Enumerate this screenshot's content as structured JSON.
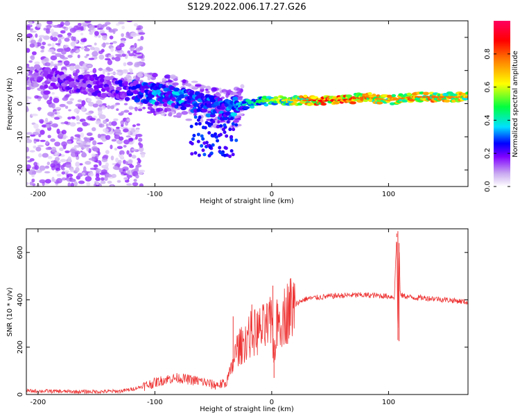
{
  "title": "S129.2022.006.17.27.G26",
  "chart_data": [
    {
      "type": "heatmap",
      "xlabel": "Height of straight line (km)",
      "ylabel": "Frequency (Hz)",
      "xlim": [
        -210,
        168
      ],
      "ylim": [
        -25,
        25
      ],
      "xticks": [
        -200,
        -100,
        0,
        100
      ],
      "yticks": [
        -20,
        -10,
        0,
        10,
        20
      ],
      "colorbar": {
        "label": "Normalized spectral amplitude",
        "range": [
          0.0,
          1.0
        ],
        "ticks": [
          0.0,
          0.2,
          0.4,
          0.6,
          0.8
        ],
        "colors": [
          "#ffffff",
          "#c8a8f0",
          "#8000ff",
          "#0000ff",
          "#00e0ff",
          "#00ff40",
          "#ffff00",
          "#ff8000",
          "#ff0000",
          "#ff0060"
        ]
      },
      "ridge": {
        "description_points_x": [
          -200,
          -180,
          -160,
          -140,
          -120,
          -100,
          -80,
          -60,
          -40,
          -20,
          0,
          20,
          40,
          60,
          80,
          100,
          120,
          140,
          168
        ],
        "peak_frequency": [
          8,
          7,
          6,
          5,
          4,
          3,
          2,
          0,
          -2,
          0,
          1,
          1,
          1,
          1,
          2,
          1,
          2,
          2,
          2
        ],
        "amplitude": [
          0.15,
          0.2,
          0.2,
          0.2,
          0.25,
          0.35,
          0.35,
          0.3,
          0.3,
          0.4,
          0.55,
          0.65,
          0.85,
          0.85,
          0.75,
          0.7,
          0.75,
          0.75,
          0.7
        ]
      }
    },
    {
      "type": "line",
      "xlabel": "Height of straight line (km)",
      "ylabel": "SNR (10 * v/v)",
      "xlim": [
        -210,
        168
      ],
      "ylim": [
        0,
        700
      ],
      "xticks": [
        -200,
        -100,
        0,
        100
      ],
      "yticks": [
        0,
        200,
        400,
        600
      ],
      "color": "#ee3333",
      "series": [
        {
          "x": [
            -210,
            -190,
            -170,
            -150,
            -130,
            -120,
            -110,
            -100,
            -90,
            -80,
            -70,
            -60,
            -50,
            -40,
            -35,
            -30,
            -25,
            -20,
            -15,
            -10,
            -5,
            0,
            2,
            5,
            10,
            15,
            20,
            25,
            30,
            40,
            50,
            60,
            70,
            80,
            90,
            100,
            105,
            107,
            108,
            109,
            110,
            115,
            120,
            130,
            140,
            150,
            160,
            168
          ],
          "y": [
            15,
            14,
            12,
            12,
            14,
            22,
            35,
            50,
            65,
            70,
            62,
            55,
            40,
            45,
            95,
            190,
            210,
            250,
            260,
            270,
            280,
            300,
            180,
            310,
            330,
            360,
            380,
            395,
            405,
            410,
            415,
            418,
            420,
            420,
            418,
            415,
            412,
            680,
            230,
            640,
            420,
            415,
            410,
            408,
            405,
            400,
            395,
            390
          ]
        }
      ],
      "spikes": [
        {
          "x": -33,
          "y": 330
        },
        {
          "x": -17,
          "y": 380
        },
        {
          "x": 1,
          "y": 460
        },
        {
          "x": 2,
          "y": 70
        },
        {
          "x": 107,
          "y": 665
        },
        {
          "x": 108,
          "y": 690
        },
        {
          "x": 109,
          "y": 225
        }
      ]
    }
  ]
}
